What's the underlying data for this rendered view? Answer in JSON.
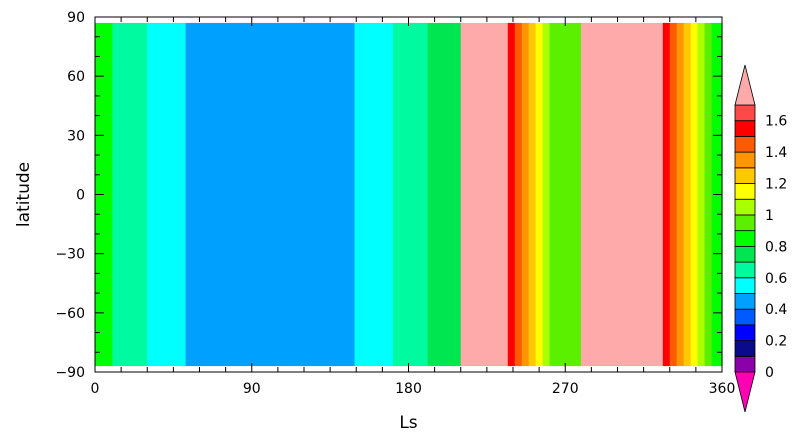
{
  "chart_data": {
    "type": "heatmap",
    "title": "",
    "xlabel": "Ls",
    "ylabel": "latitude",
    "xlim": [
      0,
      360
    ],
    "ylim": [
      -90,
      90
    ],
    "data_lat_range": [
      -87,
      87
    ],
    "x_ticks": [
      0,
      90,
      180,
      270,
      360
    ],
    "y_ticks": [
      -90,
      -60,
      -30,
      0,
      30,
      60,
      90
    ],
    "x_tick_labels": [
      "0",
      "90",
      "180",
      "270",
      "360"
    ],
    "y_tick_labels": [
      "−90",
      "−60",
      "−30",
      "0",
      "30",
      "60",
      "90"
    ],
    "grid": false,
    "legend": "right",
    "colorbar": {
      "levels": [
        0,
        0.1,
        0.2,
        0.3,
        0.4,
        0.5,
        0.6,
        0.7,
        0.8,
        0.9,
        1.0,
        1.1,
        1.2,
        1.3,
        1.4,
        1.5,
        1.6
      ],
      "colors": [
        "#8B00A8",
        "#0A0A8C",
        "#0000FF",
        "#005AFF",
        "#00A0FF",
        "#00FFFF",
        "#00FAA0",
        "#00E650",
        "#00FF00",
        "#5AF000",
        "#AAFF00",
        "#FFFF00",
        "#FFC800",
        "#FF9600",
        "#FF5A00",
        "#FF0000",
        "#FF4848"
      ],
      "under_color": "#FF00B4",
      "over_color": "#FFAAAA",
      "labels": [
        "0",
        "0.2",
        "0.4",
        "0.6",
        "0.8",
        "1",
        "1.2",
        "1.4",
        "1.6"
      ],
      "label_levels": [
        0,
        0.2,
        0.4,
        0.6,
        0.8,
        1.0,
        1.2,
        1.4,
        1.6
      ]
    },
    "bands": [
      {
        "ls_start": 0,
        "ls_end": 10,
        "value": 0.85
      },
      {
        "ls_start": 10,
        "ls_end": 30,
        "value": 0.65
      },
      {
        "ls_start": 30,
        "ls_end": 52,
        "value": 0.55
      },
      {
        "ls_start": 52,
        "ls_end": 149,
        "value": 0.45
      },
      {
        "ls_start": 149,
        "ls_end": 171,
        "value": 0.55
      },
      {
        "ls_start": 171,
        "ls_end": 191,
        "value": 0.65
      },
      {
        "ls_start": 191,
        "ls_end": 210,
        "value": 0.75
      },
      {
        "ls_start": 210,
        "ls_end": 237,
        "value": 1.7
      },
      {
        "ls_start": 237,
        "ls_end": 241,
        "value": 1.55
      },
      {
        "ls_start": 241,
        "ls_end": 245,
        "value": 1.45
      },
      {
        "ls_start": 245,
        "ls_end": 249,
        "value": 1.35
      },
      {
        "ls_start": 249,
        "ls_end": 253,
        "value": 1.25
      },
      {
        "ls_start": 253,
        "ls_end": 257,
        "value": 1.15
      },
      {
        "ls_start": 257,
        "ls_end": 261,
        "value": 1.05
      },
      {
        "ls_start": 261,
        "ls_end": 279,
        "value": 0.95
      },
      {
        "ls_start": 279,
        "ls_end": 326,
        "value": 1.7
      },
      {
        "ls_start": 326,
        "ls_end": 330,
        "value": 1.55
      },
      {
        "ls_start": 330,
        "ls_end": 334,
        "value": 1.45
      },
      {
        "ls_start": 334,
        "ls_end": 338,
        "value": 1.35
      },
      {
        "ls_start": 338,
        "ls_end": 342,
        "value": 1.25
      },
      {
        "ls_start": 342,
        "ls_end": 346,
        "value": 1.15
      },
      {
        "ls_start": 346,
        "ls_end": 350,
        "value": 1.05
      },
      {
        "ls_start": 350,
        "ls_end": 354,
        "value": 0.95
      },
      {
        "ls_start": 354,
        "ls_end": 360,
        "value": 0.85
      }
    ]
  }
}
